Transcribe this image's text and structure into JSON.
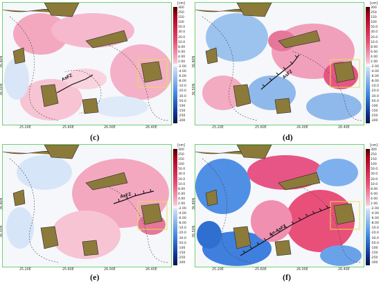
{
  "colorbar": {
    "unit": "[cm]",
    "ticks": [
      "300",
      "250",
      "150",
      "100",
      "50.0",
      "30.0",
      "20.0",
      "10.0",
      "8.00",
      "6.00",
      "4.00",
      "2.00",
      "-2.00",
      "-4.00",
      "-6.00",
      "-8.00",
      "-10.0",
      "-20.0",
      "-30.0",
      "-50.0",
      "-100",
      "-150",
      "-250",
      "-300"
    ]
  },
  "axes": {
    "x_ticks": [
      "25.20E",
      "25.60E",
      "26.00E",
      "26.40E"
    ],
    "y_ticks": [
      "36.80N",
      "36.50N",
      "36.20N"
    ]
  },
  "panels": [
    {
      "id": "c",
      "label": "(c)",
      "fault_label": "AsFZ"
    },
    {
      "id": "d",
      "label": "(d)",
      "fault_label": "AsFZ"
    },
    {
      "id": "e",
      "label": "(e)",
      "fault_label": "AsFZ"
    },
    {
      "id": "f",
      "label": "(f)",
      "fault_label": "An-AsFZ"
    }
  ],
  "colors": {
    "positive": "#e8507a",
    "negative": "#3f86e0",
    "land": "#8c7a3a",
    "frame": "#6fcf6f",
    "box": "#e6e04a"
  }
}
